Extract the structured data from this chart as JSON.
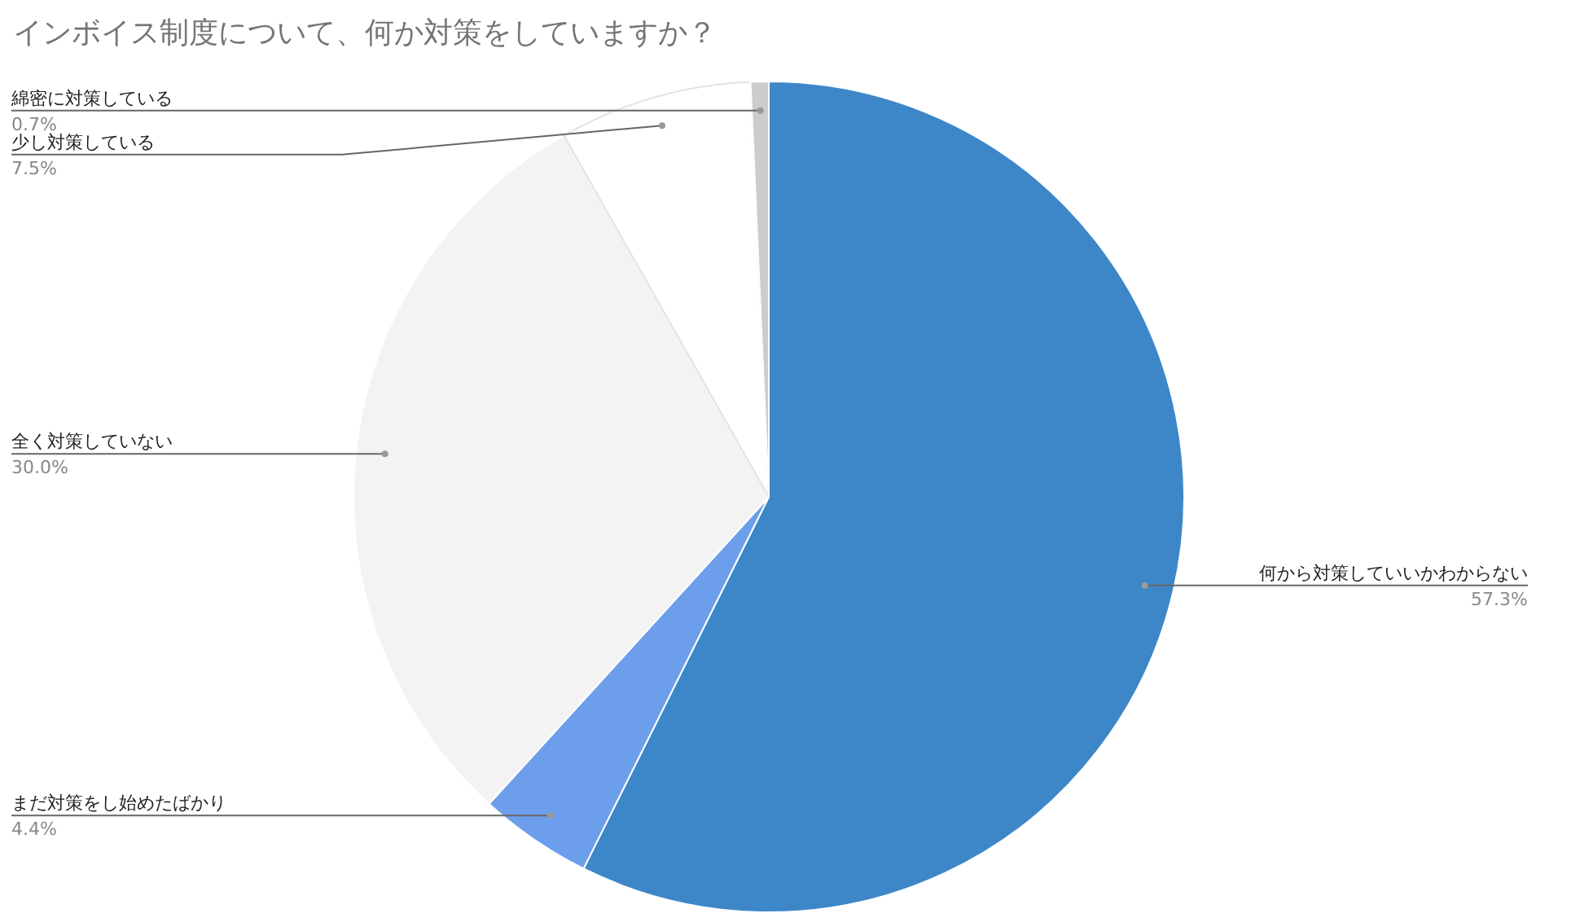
{
  "chart_data": {
    "type": "pie",
    "title": "インボイス制度について、何か対策をしていますか？",
    "categories": [
      "何から対策していいかわからない",
      "まだ対策をし始めたばかり",
      "全く対策していない",
      "少し対策している",
      "綿密に対策している"
    ],
    "values": [
      57.3,
      4.4,
      30.0,
      7.5,
      0.7
    ],
    "value_labels": [
      "57.3%",
      "4.4%",
      "30.0%",
      "7.5%",
      "0.7%"
    ],
    "colors": [
      "#3d87c8",
      "#6d9eeb",
      "#f3f3f3",
      "#ffffff",
      "#cccccc"
    ]
  }
}
